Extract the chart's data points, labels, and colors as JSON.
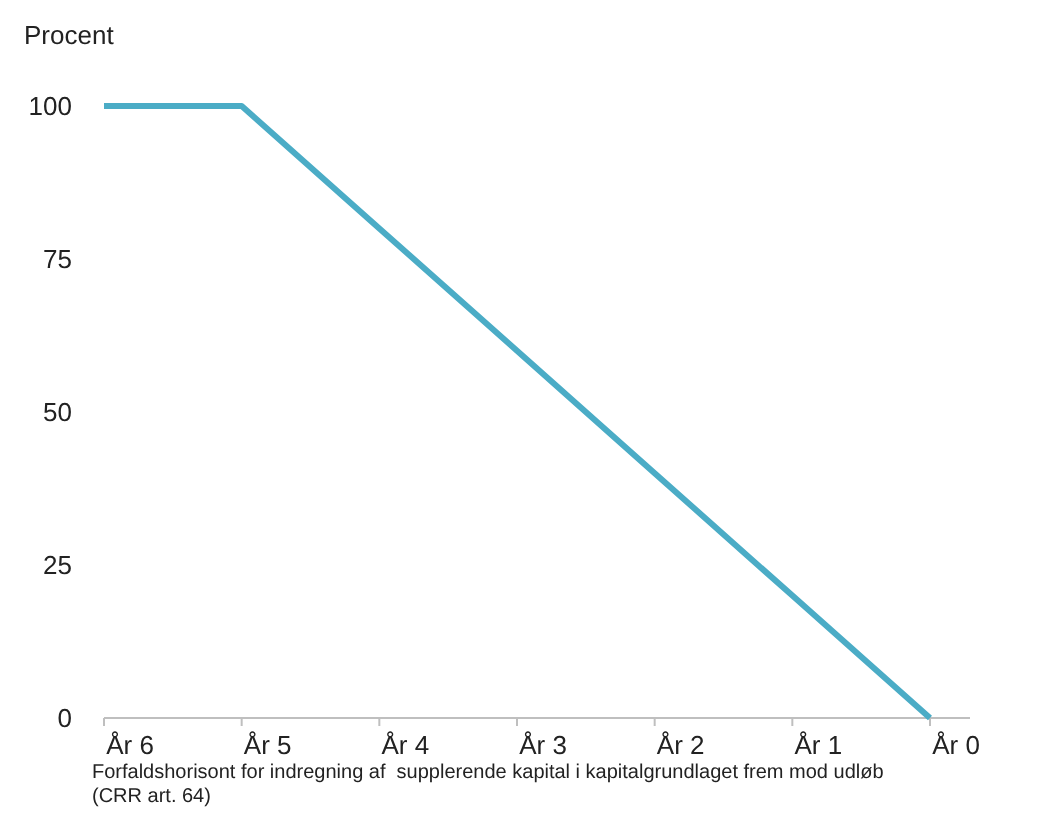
{
  "chart_data": {
    "type": "line",
    "ylabel": "Procent",
    "xlabel": "Forfaldshorisont for indregning af  supplerende kapital i kapitalgrundlaget frem mod udløb (CRR art. 64)",
    "categories": [
      "År 6",
      "År 5",
      "År 4",
      "År 3",
      "År 2",
      "År 1",
      "År 0"
    ],
    "series": [
      {
        "color": "#4bacc6",
        "values": [
          100,
          100,
          80,
          60,
          40,
          20,
          0
        ]
      }
    ],
    "ylim": [
      0,
      100
    ],
    "yticks": [
      0,
      25,
      50,
      75,
      100
    ],
    "grid": false,
    "marker": "none",
    "line_style": "solid"
  }
}
